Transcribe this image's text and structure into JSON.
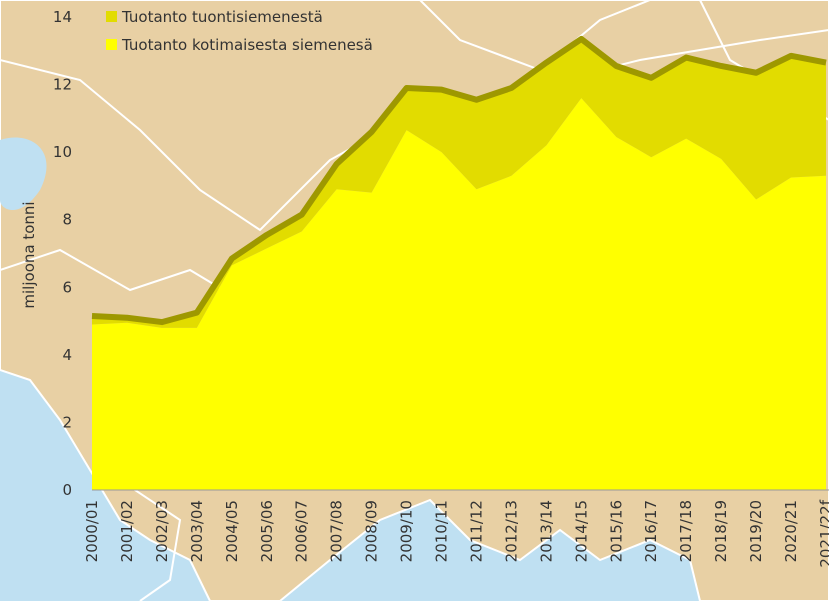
{
  "chart_data": {
    "type": "area",
    "y_label": "miljoona tonni",
    "stacked": true,
    "categories": [
      "2000/01",
      "2001/02",
      "2002/03",
      "2003/04",
      "2004/05",
      "2005/06",
      "2006/07",
      "2007/08",
      "2008/09",
      "2009/10",
      "2010/11",
      "2011/12",
      "2012/13",
      "2013/14",
      "2014/15",
      "2015/16",
      "2016/17",
      "2017/18",
      "2018/19",
      "2019/20",
      "2020/21",
      "2021/22f"
    ],
    "series": [
      {
        "name": "Tuotanto tuontisiemenestä",
        "color": "#e2dc00",
        "edge_color": "#9e9800",
        "values": [
          0.25,
          0.15,
          0.17,
          0.45,
          0.2,
          0.4,
          0.5,
          0.75,
          1.8,
          1.25,
          1.85,
          2.65,
          2.6,
          2.45,
          1.75,
          2.1,
          2.35,
          2.4,
          2.75,
          3.75,
          3.6,
          3.35
        ]
      },
      {
        "name": "Tuotanto kotimaisesta siemenesä",
        "color": "#ffff00",
        "values": [
          4.9,
          4.95,
          4.8,
          4.8,
          6.65,
          7.15,
          7.65,
          8.9,
          8.8,
          10.65,
          10.0,
          8.9,
          9.3,
          10.2,
          11.6,
          10.45,
          9.85,
          10.4,
          9.8,
          8.6,
          9.25,
          9.3
        ]
      }
    ],
    "ylim": [
      0,
      14
    ],
    "yticks": [
      0,
      2,
      4,
      6,
      8,
      10,
      12,
      14
    ]
  }
}
